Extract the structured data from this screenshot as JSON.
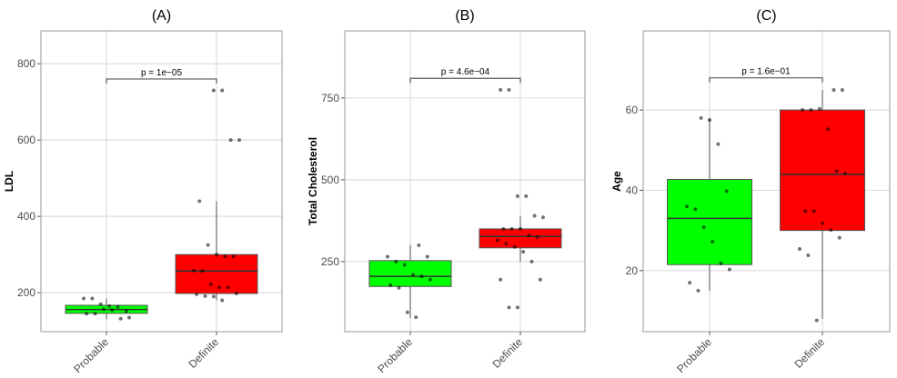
{
  "chart_data": [
    {
      "type": "box",
      "title": "(A)",
      "ylabel": "LDL",
      "xlabel": "",
      "categories": [
        "Probable",
        "Definite"
      ],
      "ylim": [
        98,
        886
      ],
      "yticks": [
        200,
        400,
        600,
        800
      ],
      "grid": true,
      "fill_colors": [
        "#00ff00",
        "#ff0000"
      ],
      "boxes": [
        {
          "q1": 146,
          "median": 156,
          "q3": 167,
          "whisker_low": 130,
          "whisker_high": 185
        },
        {
          "q1": 198,
          "median": 257,
          "q3": 300,
          "whisker_low": 180,
          "whisker_high": 440
        }
      ],
      "points": [
        [
          185,
          185,
          170,
          165,
          163,
          152,
          145,
          145,
          157,
          155,
          132,
          135
        ],
        [
          730,
          730,
          600,
          600,
          440,
          325,
          300,
          295,
          295,
          258,
          257,
          222,
          214,
          214,
          198,
          196,
          191,
          190,
          180
        ]
      ],
      "comparison": {
        "label": "p = 1e−05",
        "y": 760
      }
    },
    {
      "type": "box",
      "title": "(B)",
      "ylabel": "Total Cholesterol",
      "xlabel": "",
      "categories": [
        "Probable",
        "Definite"
      ],
      "ylim": [
        36,
        955
      ],
      "yticks": [
        250,
        500,
        750
      ],
      "grid": true,
      "fill_colors": [
        "#00ff00",
        "#ff0000"
      ],
      "boxes": [
        {
          "q1": 174,
          "median": 205,
          "q3": 253,
          "whisker_low": 77,
          "whisker_high": 301
        },
        {
          "q1": 292,
          "median": 327,
          "q3": 350,
          "whisker_low": 250,
          "whisker_high": 390
        }
      ],
      "points": [
        [
          300,
          265,
          265,
          250,
          240,
          210,
          205,
          195,
          178,
          170,
          95,
          80
        ],
        [
          775,
          775,
          450,
          450,
          390,
          385,
          350,
          350,
          350,
          330,
          325,
          315,
          305,
          295,
          280,
          250,
          195,
          195,
          110,
          110
        ]
      ],
      "comparison": {
        "label": "p = 4.6e−04",
        "y": 810
      }
    },
    {
      "type": "box",
      "title": "(C)",
      "ylabel": "Age",
      "xlabel": "",
      "categories": [
        "Probable",
        "Definite"
      ],
      "ylim": [
        4.8,
        79.7
      ],
      "yticks": [
        20,
        40,
        60
      ],
      "grid": true,
      "fill_colors": [
        "#00ff00",
        "#ff0000"
      ],
      "boxes": [
        {
          "q1": 21.5,
          "median": 33,
          "q3": 42.7,
          "whisker_low": 15,
          "whisker_high": 58
        },
        {
          "q1": 30,
          "median": 44,
          "q3": 60,
          "whisker_low": 8,
          "whisker_high": 65
        }
      ],
      "points": [
        [
          58,
          57.5,
          51.5,
          39.8,
          36,
          35.3,
          30.8,
          27.2,
          21.8,
          20.3,
          17,
          15
        ],
        [
          65,
          65,
          60,
          60,
          60.3,
          55.2,
          44.8,
          44.2,
          34.8,
          34.8,
          31.8,
          30.1,
          28.2,
          25.4,
          23.8,
          7.6
        ]
      ],
      "comparison": {
        "label": "p = 1.6e−01",
        "y": 68
      }
    }
  ]
}
